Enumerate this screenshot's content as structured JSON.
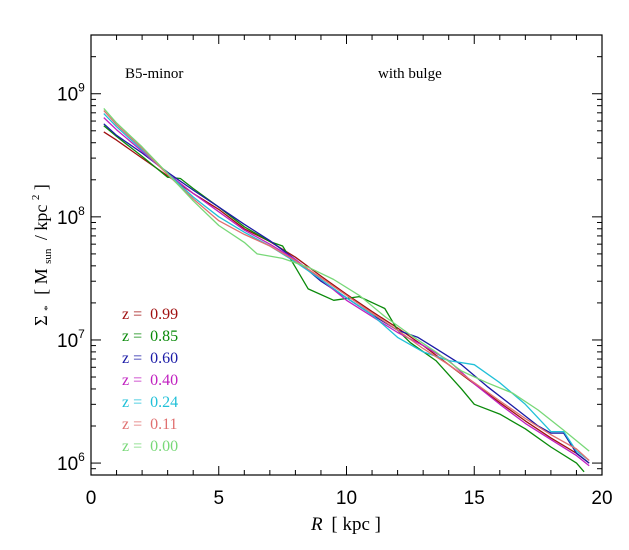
{
  "chart_data": {
    "type": "line",
    "title": "",
    "annotations": [
      "B5-minor",
      "with bulge"
    ],
    "xlabel": {
      "italic": "R",
      "rest": "[ kpc ]"
    },
    "ylabel": {
      "sigma": "Σ",
      "sigma_sub": "*",
      "open": "[ M",
      "sun": "sun",
      "mid": "/ kpc",
      "sup": "2",
      "close": " ]"
    },
    "xlim": [
      0,
      20
    ],
    "ylim": [
      800000,
      3000000000
    ],
    "y_scale": "log",
    "x_ticks": [
      0,
      5,
      10,
      15,
      20
    ],
    "x_tick_labels": [
      "0",
      "5",
      "10",
      "15",
      "20"
    ],
    "y_ticks": [
      {
        "base": "10",
        "exp": "6",
        "value": 1000000
      },
      {
        "base": "10",
        "exp": "7",
        "value": 10000000
      },
      {
        "base": "10",
        "exp": "8",
        "value": 100000000
      },
      {
        "base": "10",
        "exp": "9",
        "value": 1000000000
      }
    ],
    "legend_position": "left, lower middle",
    "series": [
      {
        "name": "z = 0.99",
        "label_prefix": "z =",
        "label_value": "0.99",
        "color": "#a01010",
        "points": [
          [
            0.5,
            490000000.0
          ],
          [
            1,
            420000000.0
          ],
          [
            2,
            300000000.0
          ],
          [
            3,
            215000000.0
          ],
          [
            4,
            155000000.0
          ],
          [
            5,
            115000000.0
          ],
          [
            6,
            80000000.0
          ],
          [
            7,
            63000000.0
          ],
          [
            8,
            47000000.0
          ],
          [
            9,
            33000000.0
          ],
          [
            10,
            23500000.0
          ],
          [
            11,
            17000000.0
          ],
          [
            12,
            12500000.0
          ],
          [
            13,
            9000000.0
          ],
          [
            14,
            6300000.0
          ],
          [
            15,
            4400000.0
          ],
          [
            16,
            3100000.0
          ],
          [
            17,
            2200000.0
          ],
          [
            18,
            1600000.0
          ],
          [
            19,
            1200000.0
          ],
          [
            19.5,
            1000000.0
          ]
        ]
      },
      {
        "name": "z = 0.85",
        "label_prefix": "z =",
        "label_value": "0.85",
        "color": "#0a8a0a",
        "points": [
          [
            0.5,
            550000000.0
          ],
          [
            1,
            450000000.0
          ],
          [
            2,
            310000000.0
          ],
          [
            3,
            210000000.0
          ],
          [
            3.5,
            205000000.0
          ],
          [
            4,
            170000000.0
          ],
          [
            5,
            120000000.0
          ],
          [
            6,
            83000000.0
          ],
          [
            7,
            63000000.0
          ],
          [
            7.5,
            58000000.0
          ],
          [
            8,
            39000000.0
          ],
          [
            8.5,
            26000000.0
          ],
          [
            9.5,
            21000000.0
          ],
          [
            10.5,
            22500000.0
          ],
          [
            11.5,
            18000000.0
          ],
          [
            12,
            12000000.0
          ],
          [
            12.5,
            9500000.0
          ],
          [
            13.5,
            6800000.0
          ],
          [
            14.5,
            4000000.0
          ],
          [
            15,
            3000000.0
          ],
          [
            16,
            2500000.0
          ],
          [
            17,
            1900000.0
          ],
          [
            18,
            1350000.0
          ],
          [
            19,
            1000000.0
          ],
          [
            19.3,
            850000.0
          ]
        ]
      },
      {
        "name": "z = 0.60",
        "label_prefix": "z =",
        "label_value": "0.60",
        "color": "#1a1aa6",
        "points": [
          [
            0.5,
            570000000.0
          ],
          [
            1,
            460000000.0
          ],
          [
            2,
            330000000.0
          ],
          [
            3,
            230000000.0
          ],
          [
            4,
            165000000.0
          ],
          [
            5,
            120000000.0
          ],
          [
            6,
            87000000.0
          ],
          [
            7,
            64000000.0
          ],
          [
            8,
            45000000.0
          ],
          [
            9,
            30000000.0
          ],
          [
            10,
            22000000.0
          ],
          [
            11,
            16000000.0
          ],
          [
            12,
            12000000.0
          ],
          [
            12.8,
            10500000.0
          ],
          [
            13.5,
            8500000.0
          ],
          [
            14.5,
            6300000.0
          ],
          [
            15.5,
            4200000.0
          ],
          [
            16.5,
            2900000.0
          ],
          [
            17.5,
            2000000.0
          ],
          [
            18,
            1750000.0
          ],
          [
            18.5,
            1750000.0
          ],
          [
            19,
            1200000.0
          ],
          [
            19.5,
            1000000.0
          ]
        ]
      },
      {
        "name": "z = 0.40",
        "label_prefix": "z =",
        "label_value": "0.40",
        "color": "#c020c0",
        "points": [
          [
            0.5,
            640000000.0
          ],
          [
            1,
            510000000.0
          ],
          [
            2,
            340000000.0
          ],
          [
            3,
            225000000.0
          ],
          [
            4,
            155000000.0
          ],
          [
            5,
            110000000.0
          ],
          [
            6,
            78000000.0
          ],
          [
            7,
            60000000.0
          ],
          [
            8,
            45000000.0
          ],
          [
            9,
            31000000.0
          ],
          [
            10,
            21000000.0
          ],
          [
            11,
            15500000.0
          ],
          [
            12,
            11500000.0
          ],
          [
            13,
            9000000.0
          ],
          [
            14,
            6800000.0
          ],
          [
            15,
            4400000.0
          ],
          [
            16,
            3000000.0
          ],
          [
            17,
            2100000.0
          ],
          [
            18,
            1550000.0
          ],
          [
            19,
            1150000.0
          ],
          [
            19.5,
            950000.0
          ]
        ]
      },
      {
        "name": "z = 0.24",
        "label_prefix": "z =",
        "label_value": "0.24",
        "color": "#20c0d8",
        "points": [
          [
            0.5,
            690000000.0
          ],
          [
            1,
            540000000.0
          ],
          [
            2,
            350000000.0
          ],
          [
            3,
            225000000.0
          ],
          [
            4,
            145000000.0
          ],
          [
            5,
            100000000.0
          ],
          [
            6,
            75000000.0
          ],
          [
            7,
            58000000.0
          ],
          [
            8,
            43000000.0
          ],
          [
            9,
            31000000.0
          ],
          [
            10,
            22000000.0
          ],
          [
            11,
            16000000.0
          ],
          [
            12,
            10500000.0
          ],
          [
            13,
            8000000.0
          ],
          [
            14,
            6800000.0
          ],
          [
            15,
            6300000.0
          ],
          [
            16,
            4500000.0
          ],
          [
            17,
            3000000.0
          ],
          [
            18,
            1800000.0
          ],
          [
            18.5,
            1800000.0
          ],
          [
            19,
            1250000.0
          ],
          [
            19.5,
            1050000.0
          ]
        ]
      },
      {
        "name": "z = 0.11",
        "label_prefix": "z =",
        "label_value": "0.11",
        "color": "#e07070",
        "points": [
          [
            0.5,
            730000000.0
          ],
          [
            1,
            560000000.0
          ],
          [
            2,
            360000000.0
          ],
          [
            3,
            220000000.0
          ],
          [
            4,
            140000000.0
          ],
          [
            5,
            93000000.0
          ],
          [
            6,
            72000000.0
          ],
          [
            7,
            58000000.0
          ],
          [
            8,
            44000000.0
          ],
          [
            9,
            32000000.0
          ],
          [
            10,
            23000000.0
          ],
          [
            11,
            16500000.0
          ],
          [
            12,
            12000000.0
          ],
          [
            13,
            8500000.0
          ],
          [
            14,
            6300000.0
          ],
          [
            15,
            4500000.0
          ],
          [
            16,
            3200000.0
          ],
          [
            17,
            2300000.0
          ],
          [
            18,
            1700000.0
          ],
          [
            19,
            1300000.0
          ],
          [
            19.5,
            1050000.0
          ]
        ]
      },
      {
        "name": "z = 0.00",
        "label_prefix": "z =",
        "label_value": "0.00",
        "color": "#78d878",
        "points": [
          [
            0.5,
            760000000.0
          ],
          [
            1,
            580000000.0
          ],
          [
            2,
            370000000.0
          ],
          [
            3,
            225000000.0
          ],
          [
            4,
            135000000.0
          ],
          [
            5,
            85000000.0
          ],
          [
            6,
            62000000.0
          ],
          [
            6.5,
            50000000.0
          ],
          [
            7.5,
            46000000.0
          ],
          [
            8.5,
            39000000.0
          ],
          [
            9.5,
            31000000.0
          ],
          [
            10.5,
            23000000.0
          ],
          [
            11.5,
            15500000.0
          ],
          [
            12.5,
            11000000.0
          ],
          [
            13.5,
            8000000.0
          ],
          [
            14.5,
            5600000.0
          ],
          [
            15.5,
            4500000.0
          ],
          [
            16.5,
            3700000.0
          ],
          [
            17.5,
            2700000.0
          ],
          [
            18.5,
            1850000.0
          ],
          [
            19.5,
            1250000.0
          ]
        ]
      }
    ]
  }
}
